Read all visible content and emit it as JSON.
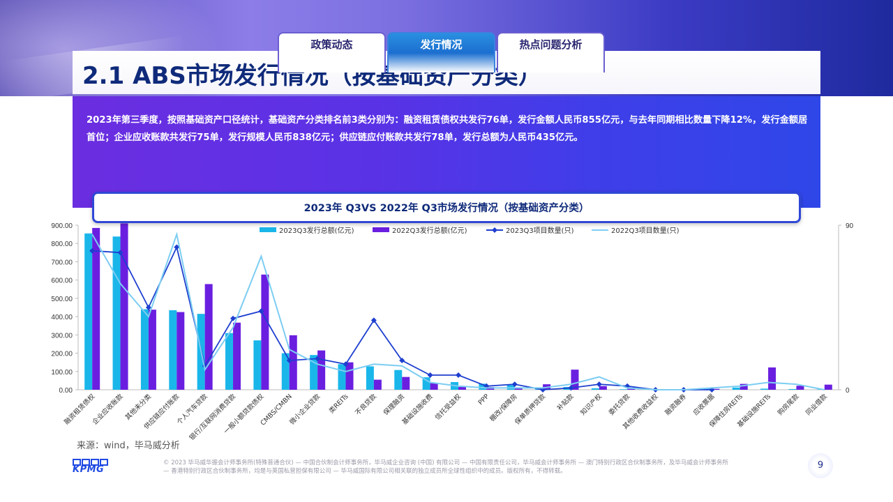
{
  "tabs": [
    {
      "label": "政策动态",
      "active": false
    },
    {
      "label": "发行情况",
      "active": true
    },
    {
      "label": "热点问题分析",
      "active": false
    }
  ],
  "page": {
    "title": "2.1 ABS市场发行情况（按基础资产分类）",
    "description": "2023年第三季度，按照基础资产口径统计，基础资产分类排名前3类分别为：融资租赁债权共发行76单，发行金额人民币855亿元，与去年同期相比数量下降12%，发行金额居首位；企业应收账款共发行75单，发行规模人民币838亿元；供应链应付账款共发行78单，发行总额为人民币435亿元。",
    "source": "来源：wind，毕马威分析",
    "footer": "© 2023 毕马威华振会计师事务所(特殊普通合伙) — 中国合伙制会计师事务所，毕马威企业咨询 (中国) 有限公司 — 中国有限责任公司，毕马威会计师事务所 — 澳门特别行政区合伙制事务所，及毕马威会计师事务所 — 香港特别行政区合伙制事务所，均是与英国私营担保有限公司 — 毕马威国际有限公司相关联的独立成员所全球性组织中的成员。版权所有，不得转载。",
    "page_number": "9",
    "logo_text": "KPMG"
  },
  "colors": {
    "bar_2023": "#1ab6ea",
    "bar_2022": "#6a1fe0",
    "line_2023": "#1e3fcf",
    "line_2022": "#7ccdf2",
    "axis": "#bbbbbb",
    "text": "#333333"
  },
  "chart_data": {
    "type": "bar",
    "title": "2023年 Q3VS 2022年 Q3市场发行情况（按基础资产分类）",
    "categories": [
      "融资租赁债权",
      "企业应收账款",
      "其他未分类",
      "供应链应付账款",
      "个人汽车贷款",
      "银行/互联网消费贷款",
      "一般小额贷款债权",
      "CMBS/CMBN",
      "微小企业贷款",
      "类REITs",
      "不良贷款",
      "保理融资",
      "基础设施收费",
      "信托受益权",
      "PPP",
      "棚改/保障房",
      "保单质押贷款",
      "补贴款",
      "知识产权",
      "委托贷款",
      "其他收费收益权",
      "融资融券",
      "应收票据",
      "保障住房REITs",
      "基础设施REITs",
      "购房尾款",
      "同业借款"
    ],
    "y_left": {
      "min": 0,
      "max": 900,
      "ticks": [
        "0.00",
        "100.00",
        "200.00",
        "300.00",
        "400.00",
        "500.00",
        "600.00",
        "700.00",
        "800.00",
        "900.00"
      ]
    },
    "y_right": {
      "min": 0,
      "max": 90,
      "ticks": [
        "0",
        "90"
      ]
    },
    "series": [
      {
        "name": "2023Q3发行总额(亿元)",
        "kind": "bar",
        "axis": "left",
        "values": [
          855,
          838,
          440,
          435,
          415,
          310,
          270,
          200,
          190,
          140,
          128,
          108,
          68,
          42,
          33,
          25,
          8,
          15,
          8,
          3,
          2,
          2,
          8,
          12,
          6,
          4,
          2
        ]
      },
      {
        "name": "2022Q3发行总额(亿元)",
        "kind": "bar",
        "axis": "left",
        "values": [
          885,
          910,
          438,
          425,
          578,
          367,
          630,
          298,
          215,
          150,
          55,
          70,
          38,
          15,
          15,
          10,
          30,
          110,
          20,
          5,
          3,
          2,
          5,
          32,
          122,
          22,
          28
        ]
      },
      {
        "name": "2023Q3项目数量(只)",
        "kind": "line",
        "axis": "right",
        "values": [
          76,
          75,
          45,
          78,
          13,
          39,
          43,
          16,
          17,
          14,
          38,
          16,
          8,
          8,
          2,
          3,
          0,
          1,
          3,
          2,
          0,
          0,
          0,
          null,
          null,
          null,
          null
        ]
      },
      {
        "name": "2022Q3项目数量(只)",
        "kind": "line",
        "axis": "right",
        "values": [
          85,
          58,
          40,
          85,
          11,
          34,
          73,
          22,
          14,
          10,
          14,
          13,
          4,
          2,
          1,
          1,
          1,
          3,
          7,
          1,
          0,
          0,
          1,
          2,
          4,
          3,
          0
        ]
      }
    ],
    "legend_position": "top-center",
    "grid": false
  }
}
